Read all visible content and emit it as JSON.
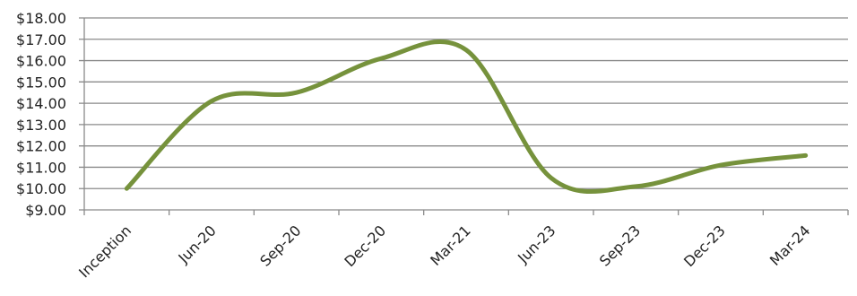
{
  "chart_data": {
    "type": "line",
    "title": "",
    "xlabel": "",
    "ylabel": "",
    "categories": [
      "Inception",
      "Jun-20",
      "Sep-20",
      "Dec-20",
      "Mar-21",
      "Jun-23",
      "Sep-23",
      "Dec-23",
      "Mar-24"
    ],
    "y_tick_labels": [
      "$9.00",
      "$10.00",
      "$11.00",
      "$12.00",
      "$13.00",
      "$14.00",
      "$15.00",
      "$16.00",
      "$17.00",
      "$18.00"
    ],
    "ylim": [
      9,
      18
    ],
    "y_tick_step": 1,
    "grid": true,
    "legend": "none",
    "series": [
      {
        "color": "#76923c",
        "values": [
          10.0,
          14.1,
          14.5,
          16.1,
          16.5,
          10.5,
          10.1,
          11.1,
          11.55
        ]
      }
    ]
  }
}
